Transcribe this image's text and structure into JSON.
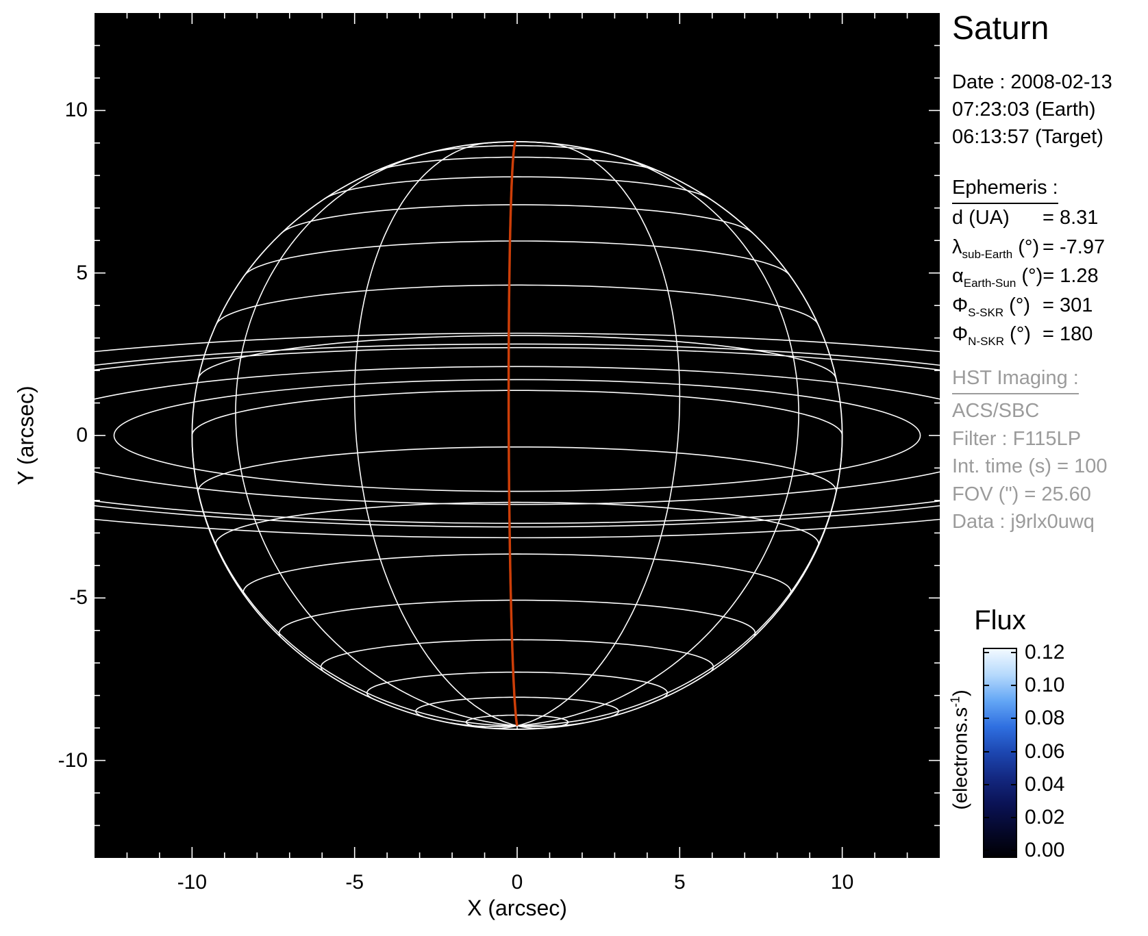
{
  "title": "Saturn",
  "observation": {
    "lines": [
      "Date : 2008-02-13",
      "07:23:03 (Earth)",
      "06:13:57 (Target)"
    ]
  },
  "ephemeris": {
    "heading": "Ephemeris :",
    "rows": [
      {
        "sym": "d",
        "sub": "",
        "unit": "(UA)",
        "valstr": "= 8.31"
      },
      {
        "sym": "λ",
        "sub": "sub-Earth",
        "unit": "(°)",
        "valstr": "= -7.97"
      },
      {
        "sym": "α",
        "sub": "Earth-Sun",
        "unit": "(°)",
        "valstr": "= 1.28"
      },
      {
        "sym": "Φ",
        "sub": "S-SKR",
        "unit": "(°)",
        "valstr": "= 301"
      },
      {
        "sym": "Φ",
        "sub": "N-SKR",
        "unit": "(°)",
        "valstr": "= 180"
      }
    ]
  },
  "hst": {
    "heading": "HST Imaging :",
    "lines": [
      "ACS/SBC",
      "Filter : F115LP",
      "Int. time (s) = 100",
      "FOV (\") = 25.60",
      "Data : j9rlx0uwq"
    ]
  },
  "colorbar": {
    "title": "Flux",
    "unit_pre": "(electrons.s",
    "unit_sup": "-1",
    "unit_post": ")",
    "ticks": [
      "0.12",
      "0.10",
      "0.08",
      "0.06",
      "0.04",
      "0.02",
      "0.00"
    ],
    "gradient": [
      "#000004",
      "#05082b",
      "#0a1254",
      "#13277f",
      "#1c46b0",
      "#2f6fe0",
      "#63a6f5",
      "#b5d9fc",
      "#f2f9ff"
    ]
  },
  "axes": {
    "xlabel": "X (arcsec)",
    "ylabel": "Y (arcsec)",
    "x_ticks": [
      {
        "label": "-10",
        "value": -10
      },
      {
        "label": "-5",
        "value": -5
      },
      {
        "label": "0",
        "value": 0
      },
      {
        "label": "5",
        "value": 5
      },
      {
        "label": "10",
        "value": 10
      }
    ],
    "y_ticks": [
      {
        "label": "10",
        "value": 10
      },
      {
        "label": "5",
        "value": 5
      },
      {
        "label": "0",
        "value": 0
      },
      {
        "label": "-5",
        "value": -5
      },
      {
        "label": "-10",
        "value": -10
      }
    ]
  },
  "chart_data": {
    "type": "wireframe-planet-projection",
    "title": "Saturn",
    "xlabel": "X (arcsec)",
    "ylabel": "Y (arcsec)",
    "xlim": [
      -13,
      13
    ],
    "ylim": [
      -13,
      13
    ],
    "background": "#000000",
    "grid_color": "#ffffff",
    "planet": {
      "equatorial_radius_arcsec": 10.0,
      "oblateness": 0.098,
      "subearth_latitude_deg": -7.97,
      "latitude_step_deg": 10,
      "meridian_step_deg": 30,
      "central_meridian_lon_offset_deg": -1.5,
      "central_meridian_color": "#cd3e08"
    },
    "rings_arcsec": [
      12.4,
      15.3,
      19.5,
      20.3,
      22.7
    ],
    "ephemeris_values": {
      "d_UA": 8.31,
      "lambda_subEarth_deg": -7.97,
      "alpha_EarthSun_deg": 1.28,
      "phi_S_SKR_deg": 301,
      "phi_N_SKR_deg": 180
    },
    "flux_scale": {
      "min": 0.0,
      "max": 0.12,
      "tick_step": 0.02,
      "units": "electrons.s-1"
    }
  }
}
